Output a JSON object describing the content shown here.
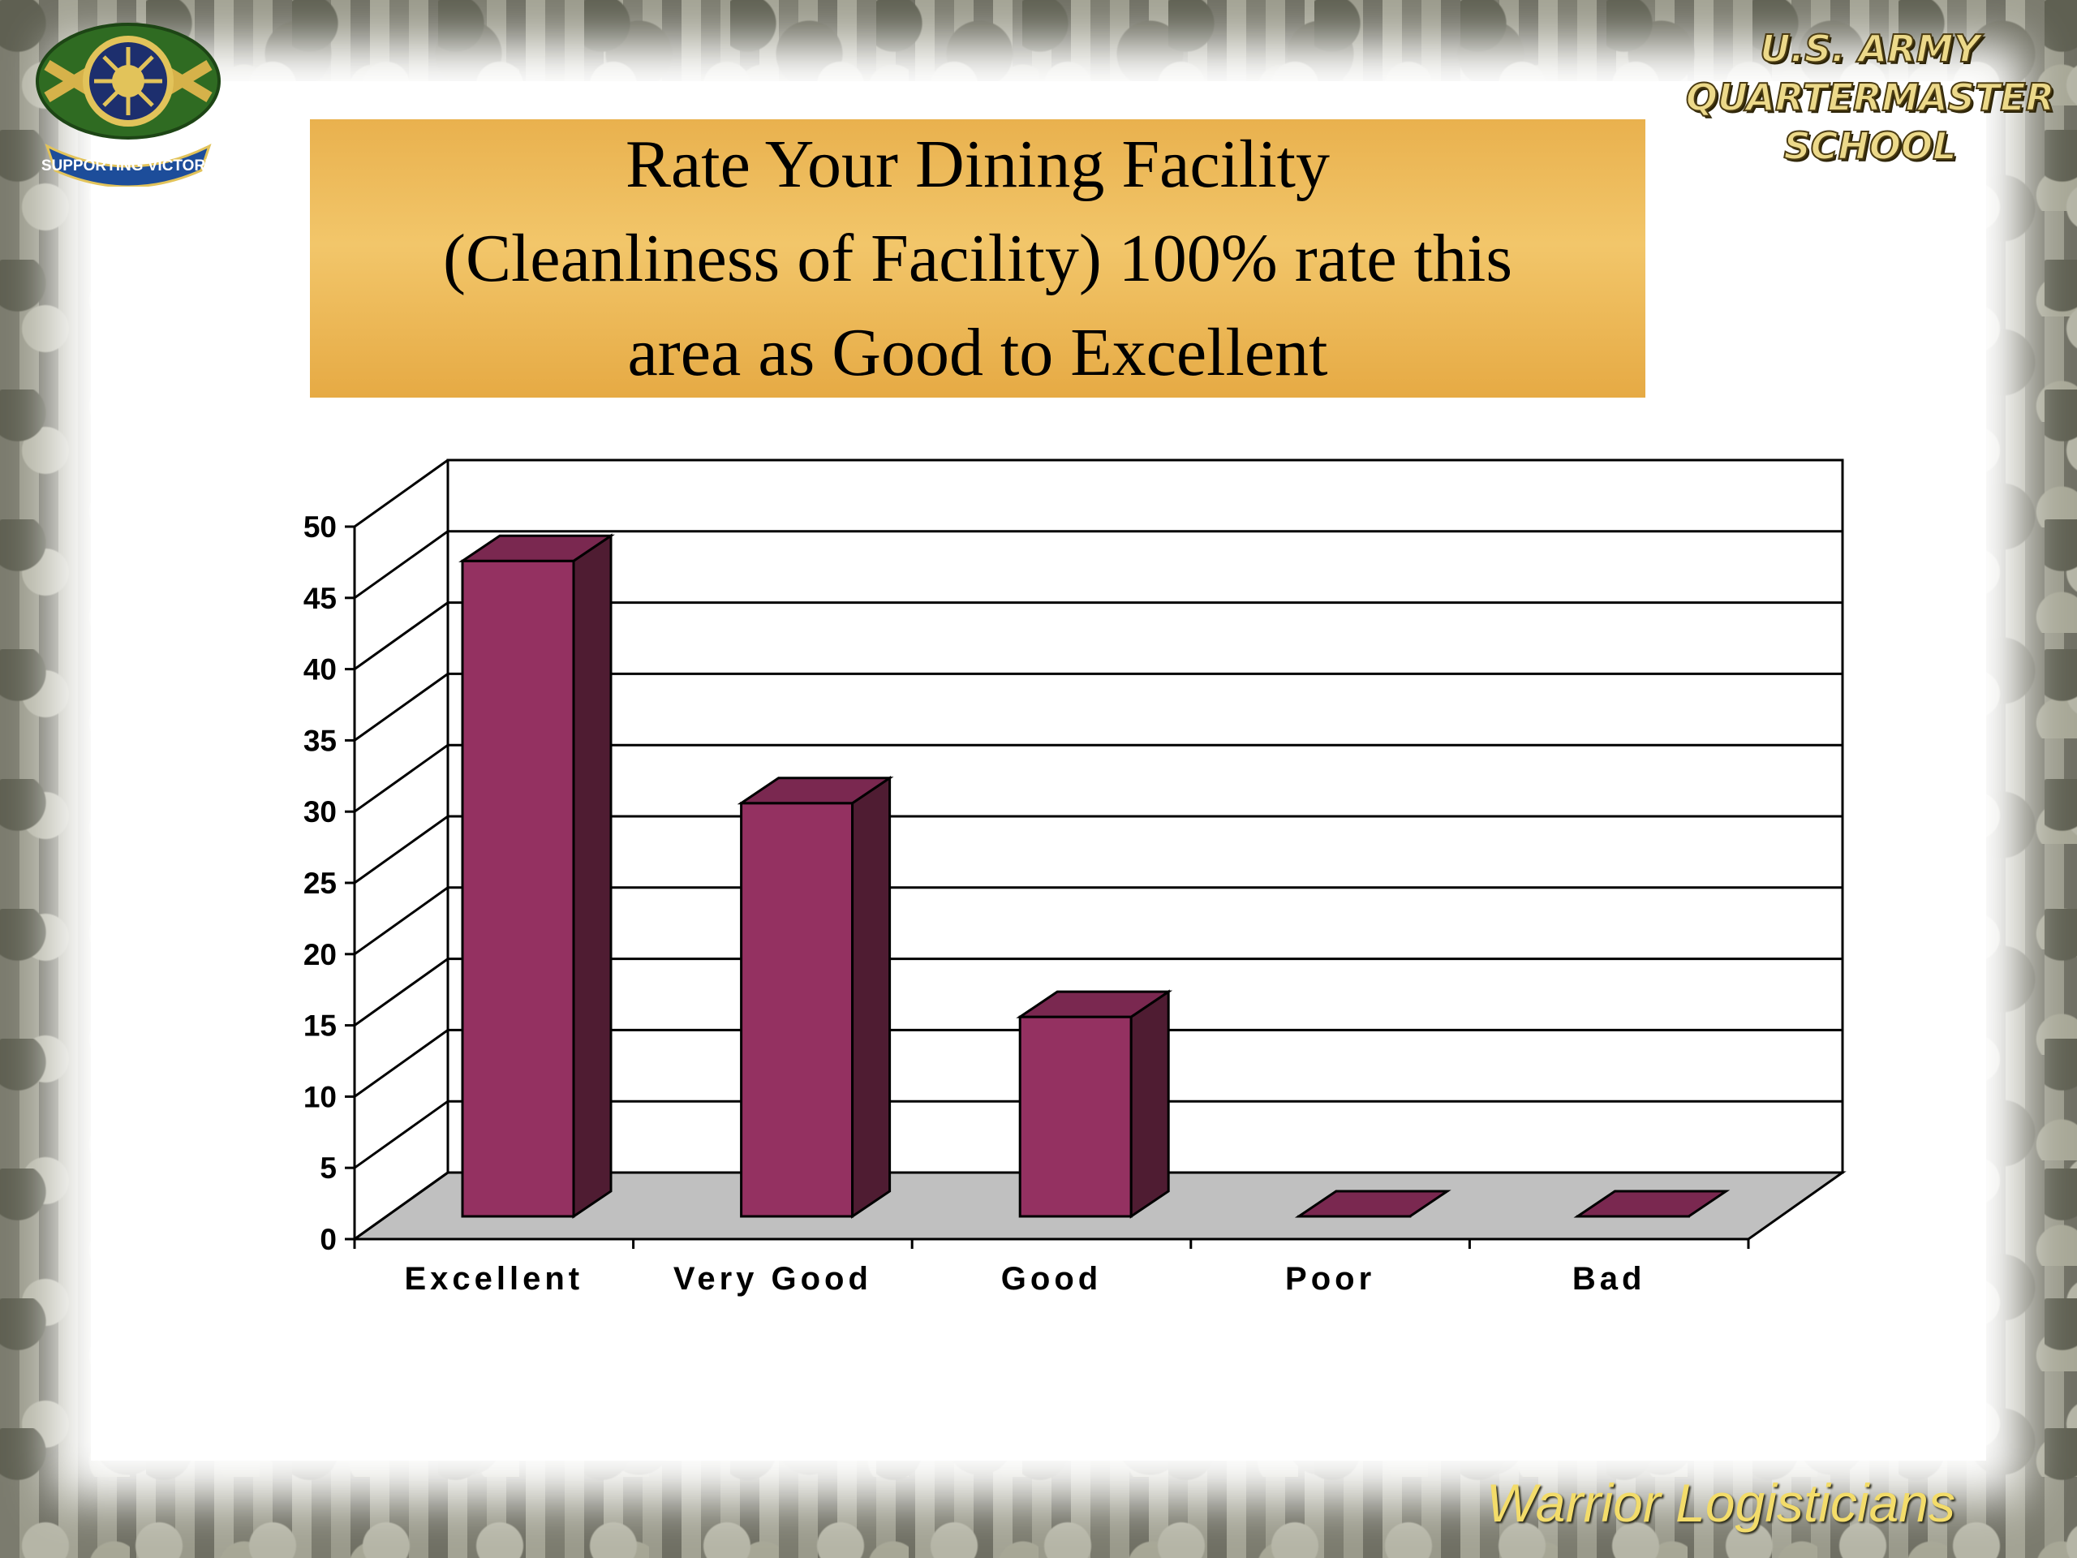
{
  "branding": {
    "emblem_text": "SUPPORTING VICTORY",
    "school_lines": [
      "U.S. ARMY",
      "QUARTERMASTER",
      "SCHOOL"
    ],
    "footer": "Warrior Logisticians"
  },
  "slide": {
    "title_lines": [
      "Rate Your Dining Facility",
      "(Cleanliness of Facility) 100% rate this",
      "area as Good to Excellent"
    ]
  },
  "colors": {
    "bar_front": "#943161",
    "bar_side": "#4f1c32",
    "bar_top": "#7a2850",
    "floor": "#c0c0c0",
    "title_box": "#efb95a"
  },
  "chart_data": {
    "type": "bar",
    "style": "3d-column",
    "categories": [
      "Excellent",
      "Very Good",
      "Good",
      "Poor",
      "Bad"
    ],
    "values": [
      46,
      29,
      14,
      0,
      0
    ],
    "ylim": [
      0,
      50
    ],
    "yticks": [
      0,
      5,
      10,
      15,
      20,
      25,
      30,
      35,
      40,
      45,
      50
    ],
    "grid": true,
    "legend": "none"
  }
}
